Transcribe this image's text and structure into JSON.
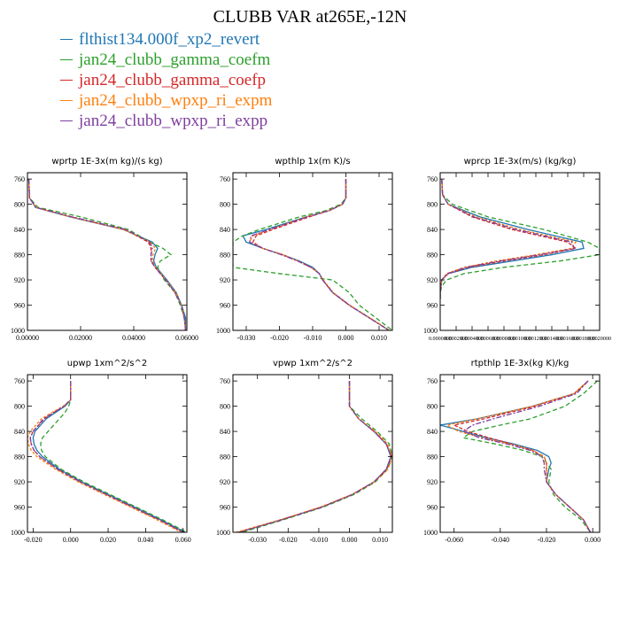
{
  "title": "CLUBB VAR at265E,-12N",
  "colors": [
    "#1f77b4",
    "#2ca02c",
    "#d62728",
    "#ff7f0e",
    "#7f3f9f"
  ],
  "dashes": [
    "",
    "5,3",
    "4,2",
    "3,2",
    "6,2,2,2"
  ],
  "chart_data": [
    {
      "type": "line",
      "title": "wprtp  1E-3x(m kg)/(s kg)",
      "xlim": [
        0,
        0.06
      ],
      "xticks": [
        0,
        0.02,
        0.04,
        0.06
      ],
      "xticklabels": [
        "0.00000",
        "0.02000",
        "0.04000",
        "0.06000"
      ],
      "ylim": [
        1000,
        750
      ],
      "yticks": [
        760,
        800,
        840,
        880,
        920,
        960,
        1000
      ],
      "y": [
        760,
        790,
        805,
        820,
        840,
        860,
        870,
        880,
        890,
        900,
        920,
        940,
        960,
        980,
        1000
      ],
      "series": [
        {
          "name": "flthist134.000f_xp2_revert",
          "values": [
            0.0005,
            0.0008,
            0.003,
            0.016,
            0.036,
            0.047,
            0.049,
            0.048,
            0.0475,
            0.0485,
            0.0525,
            0.056,
            0.058,
            0.0595,
            0.0595
          ]
        },
        {
          "name": "jan24_clubb_gamma_coefm",
          "values": [
            0.0005,
            0.0008,
            0.004,
            0.02,
            0.038,
            0.046,
            0.051,
            0.054,
            0.05,
            0.049,
            0.0515,
            0.0555,
            0.0575,
            0.059,
            0.0595
          ]
        },
        {
          "name": "jan24_clubb_gamma_coefp",
          "values": [
            0.0005,
            0.0008,
            0.0032,
            0.0165,
            0.0365,
            0.0455,
            0.0465,
            0.0465,
            0.0465,
            0.048,
            0.052,
            0.0555,
            0.058,
            0.059,
            0.0595
          ]
        },
        {
          "name": "jan24_clubb_wpxp_ri_expm",
          "values": [
            0.0005,
            0.0008,
            0.0031,
            0.0162,
            0.0362,
            0.0462,
            0.0482,
            0.0472,
            0.047,
            0.0482,
            0.0522,
            0.0558,
            0.058,
            0.059,
            0.0595
          ]
        },
        {
          "name": "jan24_clubb_wpxp_ri_expp",
          "values": [
            0.0005,
            0.0008,
            0.0032,
            0.0168,
            0.037,
            0.046,
            0.047,
            0.0465,
            0.0466,
            0.048,
            0.052,
            0.0555,
            0.058,
            0.059,
            0.0595
          ]
        }
      ]
    },
    {
      "type": "line",
      "title": "wpthlp  1x(m K)/s",
      "xlim": [
        -0.034,
        0.014
      ],
      "xticks": [
        -0.03,
        -0.02,
        -0.01,
        0,
        0.01
      ],
      "xticklabels": [
        "-0.030",
        "-0.020",
        "-0.010",
        "0.000",
        "0.010"
      ],
      "ylim": [
        1000,
        750
      ],
      "yticks": [
        760,
        800,
        840,
        880,
        920,
        960,
        1000
      ],
      "y": [
        760,
        790,
        800,
        810,
        820,
        840,
        850,
        860,
        870,
        880,
        890,
        900,
        910,
        920,
        940,
        960,
        980,
        1000
      ],
      "series": [
        {
          "name": "flthist134.000f_xp2_revert",
          "values": [
            0,
            0,
            -0.001,
            -0.005,
            -0.012,
            -0.024,
            -0.031,
            -0.03,
            -0.025,
            -0.019,
            -0.014,
            -0.01,
            -0.008,
            -0.007,
            -0.004,
            0.001,
            0.007,
            0.013
          ]
        },
        {
          "name": "jan24_clubb_gamma_coefm",
          "values": [
            0,
            0,
            -0.0015,
            -0.006,
            -0.014,
            -0.026,
            -0.031,
            -0.034,
            -0.034,
            -0.034,
            -0.034,
            -0.034,
            -0.02,
            -0.004,
            0.001,
            0.004,
            0.009,
            0.014
          ]
        },
        {
          "name": "jan24_clubb_gamma_coefp",
          "values": [
            0,
            0,
            -0.001,
            -0.005,
            -0.011,
            -0.022,
            -0.027,
            -0.028,
            -0.025,
            -0.019,
            -0.0145,
            -0.0105,
            -0.008,
            -0.007,
            -0.004,
            0.001,
            0.007,
            0.013
          ]
        },
        {
          "name": "jan24_clubb_wpxp_ri_expm",
          "values": [
            0,
            0,
            -0.001,
            -0.005,
            -0.012,
            -0.023,
            -0.028,
            -0.029,
            -0.025,
            -0.019,
            -0.0145,
            -0.0105,
            -0.008,
            -0.0068,
            -0.0038,
            0.0012,
            0.0072,
            0.0132
          ]
        },
        {
          "name": "jan24_clubb_wpxp_ri_expp",
          "values": [
            0,
            0,
            -0.001,
            -0.005,
            -0.0115,
            -0.023,
            -0.0285,
            -0.029,
            -0.025,
            -0.0195,
            -0.0145,
            -0.0105,
            -0.008,
            -0.007,
            -0.004,
            0.001,
            0.007,
            0.013
          ]
        }
      ]
    },
    {
      "type": "line",
      "title": "wprcp  1E-3x(m/s) (kg/kg)",
      "xlim": [
        0,
        0.002
      ],
      "xticks": [
        0,
        0.0002,
        0.0004,
        0.0006,
        0.0008,
        0.001,
        0.0012,
        0.0014,
        0.0016,
        0.0018,
        0.002
      ],
      "xticklabels": [
        "0.0000000",
        "0.0002000",
        "0.0004000",
        "0.0006000",
        "0.0008000",
        "0.0010000",
        "0.0012000",
        "0.0014000",
        "0.0016000",
        "0.0018000",
        "0.0020000"
      ],
      "ylim": [
        1000,
        750
      ],
      "yticks": [
        760,
        800,
        840,
        880,
        920,
        960,
        1000
      ],
      "y": [
        760,
        785,
        800,
        820,
        840,
        860,
        870,
        880,
        890,
        900,
        910,
        920,
        930,
        940,
        950
      ],
      "series": [
        {
          "name": "flthist134.000f_xp2_revert",
          "values": [
            2e-05,
            3e-05,
            0.0001,
            0.0005,
            0.0011,
            0.00178,
            0.0018,
            0.0014,
            0.0009,
            0.0004,
            0.0001,
            2e-05,
            1e-05,
            0,
            0
          ]
        },
        {
          "name": "jan24_clubb_gamma_coefm",
          "values": [
            2e-05,
            3e-05,
            0.00015,
            0.0006,
            0.0013,
            0.00185,
            0.002,
            0.002,
            0.0015,
            0.0008,
            0.0003,
            8e-05,
            2e-05,
            0,
            0
          ]
        },
        {
          "name": "jan24_clubb_gamma_coefp",
          "values": [
            2e-05,
            3e-05,
            0.0001,
            0.0004,
            0.0009,
            0.0016,
            0.0017,
            0.0013,
            0.0008,
            0.00035,
            0.0001,
            2e-05,
            1e-05,
            0,
            0
          ]
        },
        {
          "name": "jan24_clubb_wpxp_ri_expm",
          "values": [
            2e-05,
            3e-05,
            0.0001,
            0.00045,
            0.001,
            0.0017,
            0.00165,
            0.0012,
            0.0007,
            0.0003,
            8e-05,
            2e-05,
            1e-05,
            0,
            0
          ]
        },
        {
          "name": "jan24_clubb_wpxp_ri_expp",
          "values": [
            2e-05,
            3e-05,
            0.0001,
            0.00042,
            0.00095,
            0.00165,
            0.00168,
            0.00125,
            0.00075,
            0.00032,
            9e-05,
            2e-05,
            1e-05,
            0,
            0
          ]
        }
      ]
    },
    {
      "type": "line",
      "title": "upwp  1xm^2/s^2",
      "xlim": [
        -0.023,
        0.062
      ],
      "xticks": [
        -0.02,
        0,
        0.02,
        0.04,
        0.06
      ],
      "xticklabels": [
        "-0.020",
        "0.000",
        "0.020",
        "0.040",
        "0.060"
      ],
      "ylim": [
        1000,
        750
      ],
      "yticks": [
        760,
        800,
        840,
        880,
        920,
        960,
        1000
      ],
      "y": [
        760,
        790,
        800,
        810,
        820,
        840,
        850,
        860,
        870,
        880,
        900,
        920,
        940,
        960,
        980,
        1000
      ],
      "series": [
        {
          "name": "flthist134.000f_xp2_revert",
          "values": [
            0,
            0,
            -0.003,
            -0.008,
            -0.013,
            -0.019,
            -0.02,
            -0.0195,
            -0.018,
            -0.015,
            -0.006,
            0.006,
            0.02,
            0.034,
            0.048,
            0.061
          ]
        },
        {
          "name": "jan24_clubb_gamma_coefm",
          "values": [
            0,
            0,
            -0.001,
            -0.003,
            -0.006,
            -0.012,
            -0.015,
            -0.016,
            -0.0155,
            -0.0135,
            -0.005,
            0.007,
            0.021,
            0.035,
            0.049,
            0.062
          ]
        },
        {
          "name": "jan24_clubb_gamma_coefp",
          "values": [
            0,
            0,
            -0.0035,
            -0.009,
            -0.014,
            -0.02,
            -0.0215,
            -0.021,
            -0.0195,
            -0.0165,
            -0.007,
            0.005,
            0.019,
            0.033,
            0.047,
            0.06
          ]
        },
        {
          "name": "jan24_clubb_wpxp_ri_expm",
          "values": [
            0,
            0,
            -0.004,
            -0.01,
            -0.0155,
            -0.0215,
            -0.023,
            -0.0225,
            -0.021,
            -0.018,
            -0.008,
            0.004,
            0.018,
            0.032,
            0.046,
            0.059
          ]
        },
        {
          "name": "jan24_clubb_wpxp_ri_expp",
          "values": [
            0,
            0,
            -0.0035,
            -0.009,
            -0.0145,
            -0.02,
            -0.0215,
            -0.021,
            -0.0195,
            -0.0165,
            -0.0068,
            0.0052,
            0.0192,
            0.0332,
            0.0472,
            0.0602
          ]
        }
      ]
    },
    {
      "type": "line",
      "title": "vpwp  1xm^2/s^2",
      "xlim": [
        -0.038,
        0.014
      ],
      "xticks": [
        -0.03,
        -0.02,
        -0.01,
        0,
        0.01
      ],
      "xticklabels": [
        "-0.030",
        "-0.020",
        "-0.010",
        "0.000",
        "0.010"
      ],
      "ylim": [
        1000,
        750
      ],
      "yticks": [
        760,
        800,
        840,
        880,
        920,
        960,
        1000
      ],
      "y": [
        760,
        800,
        820,
        840,
        860,
        880,
        900,
        920,
        940,
        960,
        980,
        1000
      ],
      "series": [
        {
          "name": "flthist134.000f_xp2_revert",
          "values": [
            0,
            0,
            0.003,
            0.008,
            0.012,
            0.0135,
            0.012,
            0.008,
            0.001,
            -0.009,
            -0.022,
            -0.036
          ]
        },
        {
          "name": "jan24_clubb_gamma_coefm",
          "values": [
            0,
            0,
            0.004,
            0.009,
            0.013,
            0.014,
            0.0125,
            0.0085,
            0.0015,
            -0.0085,
            -0.0215,
            -0.035
          ]
        },
        {
          "name": "jan24_clubb_gamma_coefp",
          "values": [
            0,
            0,
            0.003,
            0.008,
            0.012,
            0.0138,
            0.0122,
            0.0081,
            0.0009,
            -0.0092,
            -0.0222,
            -0.0362
          ]
        },
        {
          "name": "jan24_clubb_wpxp_ri_expm",
          "values": [
            0,
            0,
            0.003,
            0.0085,
            0.0125,
            0.014,
            0.0125,
            0.0082,
            0.0008,
            -0.0095,
            -0.0225,
            -0.037
          ]
        },
        {
          "name": "jan24_clubb_wpxp_ri_expp",
          "values": [
            0,
            0,
            0.003,
            0.008,
            0.012,
            0.0136,
            0.012,
            0.008,
            0.001,
            -0.009,
            -0.022,
            -0.0362
          ]
        }
      ]
    },
    {
      "type": "line",
      "title": "rtpthlp  1E-3x(kg K)/kg",
      "xlim": [
        -0.066,
        0.003
      ],
      "xticks": [
        -0.06,
        -0.04,
        -0.02,
        0
      ],
      "xticklabels": [
        "-0.060",
        "-0.040",
        "-0.020",
        "0.000"
      ],
      "ylim": [
        1000,
        750
      ],
      "yticks": [
        760,
        800,
        840,
        880,
        920,
        960,
        1000
      ],
      "y": [
        760,
        780,
        800,
        820,
        830,
        840,
        850,
        860,
        870,
        880,
        890,
        900,
        920,
        940,
        960,
        980,
        1000
      ],
      "series": [
        {
          "name": "flthist134.000f_xp2_revert",
          "values": [
            -0.002,
            -0.008,
            -0.026,
            -0.05,
            -0.066,
            -0.056,
            -0.046,
            -0.034,
            -0.024,
            -0.019,
            -0.018,
            -0.019,
            -0.02,
            -0.016,
            -0.01,
            -0.004,
            -0.001
          ]
        },
        {
          "name": "jan24_clubb_gamma_coefm",
          "values": [
            0.002,
            -0.004,
            -0.012,
            -0.027,
            -0.04,
            -0.052,
            -0.056,
            -0.042,
            -0.03,
            -0.022,
            -0.02,
            -0.018,
            -0.019,
            -0.017,
            -0.012,
            -0.005,
            -0.001
          ]
        },
        {
          "name": "jan24_clubb_gamma_coefp",
          "values": [
            -0.002,
            -0.008,
            -0.025,
            -0.047,
            -0.06,
            -0.054,
            -0.045,
            -0.035,
            -0.026,
            -0.021,
            -0.02,
            -0.02,
            -0.02,
            -0.016,
            -0.01,
            -0.004,
            -0.001
          ]
        },
        {
          "name": "jan24_clubb_wpxp_ri_expm",
          "values": [
            -0.002,
            -0.008,
            -0.026,
            -0.05,
            -0.063,
            -0.058,
            -0.048,
            -0.036,
            -0.026,
            -0.021,
            -0.02,
            -0.02,
            -0.02,
            -0.016,
            -0.01,
            -0.004,
            -0.001
          ]
        },
        {
          "name": "jan24_clubb_wpxp_ri_expp",
          "values": [
            -0.002,
            -0.007,
            -0.023,
            -0.043,
            -0.052,
            -0.056,
            -0.049,
            -0.037,
            -0.027,
            -0.022,
            -0.021,
            -0.021,
            -0.02,
            -0.016,
            -0.01,
            -0.004,
            -0.001
          ]
        }
      ]
    }
  ]
}
